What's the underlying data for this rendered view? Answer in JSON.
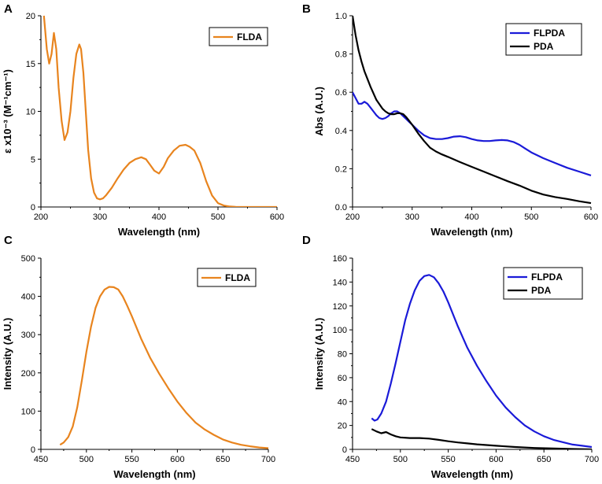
{
  "colors": {
    "orange": "#E8841E",
    "blue": "#1A1AD8",
    "black": "#000000"
  },
  "chart_data": [
    {
      "panel": "A",
      "type": "line",
      "xlabel": "Wavelength (nm)",
      "ylabel": "ε x10⁻³ (M⁻¹cm⁻¹)",
      "xlim": [
        200,
        600
      ],
      "ylim": [
        0,
        20
      ],
      "xticks": [
        200,
        300,
        400,
        500,
        600
      ],
      "yticks": [
        0,
        5,
        10,
        15,
        20
      ],
      "tick_labels_x": [
        "200",
        "300",
        "400",
        "500",
        "600"
      ],
      "tick_labels_y": [
        "0",
        "5",
        "10",
        "15",
        "20"
      ],
      "legend_position": "top-right",
      "series": [
        {
          "name": "FLDA",
          "color": "#E8841E",
          "x": [
            205,
            210,
            214,
            218,
            222,
            226,
            230,
            235,
            240,
            245,
            250,
            255,
            260,
            265,
            268,
            272,
            276,
            280,
            285,
            290,
            295,
            300,
            305,
            310,
            320,
            330,
            340,
            350,
            360,
            370,
            378,
            385,
            392,
            400,
            408,
            415,
            425,
            435,
            445,
            452,
            460,
            470,
            480,
            490,
            500,
            510,
            520,
            530,
            540,
            560,
            580,
            600
          ],
          "y": [
            20,
            16.5,
            15,
            16,
            18.2,
            16.5,
            12.5,
            9,
            7,
            7.8,
            10,
            13.5,
            16,
            17,
            16.5,
            14,
            10,
            6,
            3,
            1.5,
            0.9,
            0.8,
            0.9,
            1.2,
            2,
            3,
            3.9,
            4.6,
            5,
            5.2,
            5,
            4.4,
            3.8,
            3.5,
            4.2,
            5.1,
            5.9,
            6.4,
            6.5,
            6.3,
            5.9,
            4.6,
            2.7,
            1.2,
            0.4,
            0.15,
            0.05,
            0.02,
            0,
            0,
            0,
            0
          ]
        }
      ]
    },
    {
      "panel": "B",
      "type": "line",
      "xlabel": "Wavelength (nm)",
      "ylabel": "Abs (A.U.)",
      "xlim": [
        200,
        600
      ],
      "ylim": [
        0,
        1.0
      ],
      "xticks": [
        200,
        300,
        400,
        500,
        600
      ],
      "yticks": [
        0,
        0.2,
        0.4,
        0.6,
        0.8,
        1.0
      ],
      "tick_labels_x": [
        "200",
        "300",
        "400",
        "500",
        "600"
      ],
      "tick_labels_y": [
        "0.0",
        "0.2",
        "0.4",
        "0.6",
        "0.8",
        "1.0"
      ],
      "legend_position": "top-right",
      "series": [
        {
          "name": "FLPDA",
          "color": "#1A1AD8",
          "x": [
            200,
            205,
            210,
            215,
            220,
            225,
            230,
            235,
            240,
            245,
            250,
            255,
            260,
            265,
            270,
            275,
            280,
            285,
            290,
            295,
            300,
            310,
            320,
            330,
            340,
            350,
            360,
            370,
            380,
            390,
            400,
            410,
            420,
            430,
            440,
            450,
            460,
            470,
            480,
            490,
            500,
            520,
            540,
            560,
            580,
            600
          ],
          "y": [
            0.6,
            0.57,
            0.54,
            0.54,
            0.55,
            0.54,
            0.52,
            0.5,
            0.48,
            0.465,
            0.46,
            0.465,
            0.475,
            0.49,
            0.5,
            0.5,
            0.49,
            0.475,
            0.46,
            0.445,
            0.43,
            0.4,
            0.375,
            0.36,
            0.355,
            0.355,
            0.36,
            0.368,
            0.37,
            0.365,
            0.355,
            0.348,
            0.345,
            0.345,
            0.348,
            0.35,
            0.348,
            0.34,
            0.325,
            0.305,
            0.285,
            0.255,
            0.23,
            0.205,
            0.185,
            0.165
          ]
        },
        {
          "name": "PDA",
          "color": "#000000",
          "x": [
            200,
            205,
            210,
            215,
            220,
            225,
            230,
            240,
            250,
            255,
            260,
            265,
            270,
            275,
            280,
            285,
            290,
            295,
            300,
            310,
            320,
            330,
            340,
            350,
            360,
            380,
            400,
            420,
            440,
            460,
            480,
            500,
            520,
            540,
            560,
            580,
            600
          ],
          "y": [
            1.0,
            0.9,
            0.82,
            0.76,
            0.71,
            0.67,
            0.63,
            0.56,
            0.515,
            0.5,
            0.49,
            0.485,
            0.485,
            0.49,
            0.49,
            0.485,
            0.47,
            0.45,
            0.43,
            0.385,
            0.345,
            0.31,
            0.29,
            0.275,
            0.262,
            0.235,
            0.21,
            0.185,
            0.16,
            0.135,
            0.112,
            0.085,
            0.065,
            0.052,
            0.042,
            0.03,
            0.02
          ]
        }
      ]
    },
    {
      "panel": "C",
      "type": "line",
      "xlabel": "Wavelength (nm)",
      "ylabel": "Intensity (A.U.)",
      "xlim": [
        450,
        700
      ],
      "ylim": [
        0,
        500
      ],
      "xticks": [
        450,
        500,
        550,
        600,
        650,
        700
      ],
      "yticks": [
        0,
        100,
        200,
        300,
        400,
        500
      ],
      "tick_labels_x": [
        "450",
        "500",
        "550",
        "600",
        "650",
        "700"
      ],
      "tick_labels_y": [
        "0",
        "100",
        "200",
        "300",
        "400",
        "500"
      ],
      "legend_position": "top-right",
      "series": [
        {
          "name": "FLDA",
          "color": "#E8841E",
          "x": [
            471,
            475,
            480,
            485,
            490,
            495,
            500,
            505,
            510,
            515,
            520,
            525,
            530,
            535,
            540,
            545,
            550,
            560,
            570,
            580,
            590,
            600,
            610,
            620,
            630,
            640,
            650,
            660,
            670,
            680,
            690,
            700
          ],
          "y": [
            12,
            18,
            32,
            60,
            110,
            180,
            255,
            320,
            370,
            400,
            418,
            425,
            424,
            418,
            400,
            375,
            348,
            290,
            240,
            198,
            160,
            125,
            95,
            70,
            52,
            38,
            26,
            18,
            12,
            8,
            5,
            3
          ]
        }
      ]
    },
    {
      "panel": "D",
      "type": "line",
      "xlabel": "Wavelength (nm)",
      "ylabel": "Intensity (A.U.)",
      "xlim": [
        450,
        700
      ],
      "ylim": [
        0,
        160
      ],
      "xticks": [
        450,
        500,
        550,
        600,
        650,
        700
      ],
      "yticks": [
        0,
        20,
        40,
        60,
        80,
        100,
        120,
        140,
        160
      ],
      "tick_labels_x": [
        "450",
        "500",
        "550",
        "600",
        "650",
        "700"
      ],
      "tick_labels_y": [
        "0",
        "20",
        "40",
        "60",
        "80",
        "100",
        "120",
        "140",
        "160"
      ],
      "legend_position": "top-right",
      "series": [
        {
          "name": "FLPDA",
          "color": "#1A1AD8",
          "x": [
            470,
            473,
            476,
            480,
            485,
            490,
            495,
            500,
            505,
            510,
            515,
            520,
            525,
            530,
            535,
            540,
            545,
            550,
            560,
            570,
            580,
            590,
            600,
            610,
            620,
            630,
            640,
            650,
            660,
            670,
            680,
            690,
            700
          ],
          "y": [
            26,
            24,
            25,
            30,
            40,
            55,
            72,
            90,
            108,
            122,
            133,
            141,
            145,
            146,
            144,
            139,
            132,
            123,
            103,
            85,
            70,
            57,
            45,
            35,
            27,
            20,
            15,
            11,
            8,
            6,
            4,
            3,
            2
          ]
        },
        {
          "name": "PDA",
          "color": "#000000",
          "x": [
            470,
            475,
            480,
            485,
            490,
            495,
            500,
            510,
            520,
            530,
            540,
            550,
            560,
            570,
            580,
            600,
            620,
            640,
            660,
            680,
            700
          ],
          "y": [
            17,
            15,
            13.5,
            14.5,
            12.5,
            11,
            10,
            9.5,
            9.5,
            9,
            8,
            6.8,
            5.8,
            5,
            4.2,
            3,
            2,
            1.2,
            0.7,
            0.3,
            0
          ]
        }
      ]
    }
  ]
}
